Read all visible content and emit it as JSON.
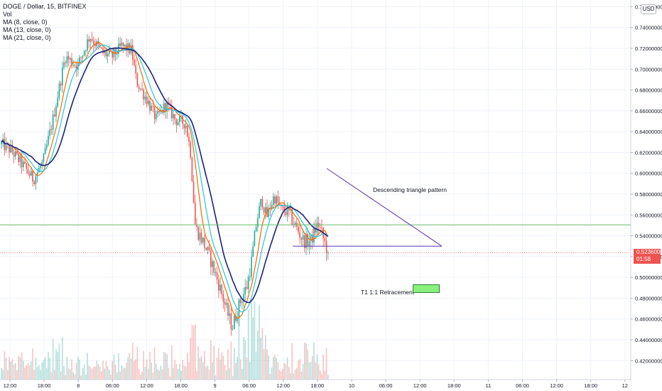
{
  "legend": {
    "symbol": "DOGE / Dollar, 15, BITFINEX",
    "vol": "Vol",
    "ma8": "MA (8, close, 0)",
    "ma13": "MA (13, close, 0)",
    "ma21": "MA (21, close, 0)"
  },
  "currency_button": "USD",
  "price_tag": {
    "price": "0.52360000",
    "countdown": "01:58"
  },
  "annotations": {
    "pattern": "Descending triangle pattern",
    "target": "T1  1:1 Retracement"
  },
  "colors": {
    "up": "#26a69a",
    "down": "#ef5350",
    "ma8": "#ef6c00",
    "ma13": "#26c6da",
    "ma21": "#1a237e",
    "support_line": "#66bb6a",
    "triangle": "#5e35b1",
    "target_box": "#89f07c",
    "price_line": "#ef5350"
  },
  "chart_data": {
    "type": "candlestick",
    "symbol": "DOGE / Dollar",
    "interval": "15",
    "exchange": "BITFINEX",
    "ylim": [
      0.412,
      0.761
    ],
    "ytick_labels": [
      "0.42000000",
      "0.44000000",
      "0.46000000",
      "0.48000000",
      "0.50000000",
      "0.52000000",
      "0.54000000",
      "0.56000000",
      "0.58000000",
      "0.60000000",
      "0.62000000",
      "0.64000000",
      "0.66000000",
      "0.68000000",
      "0.70000000",
      "0.72000000",
      "0.74000000",
      "0.76000000"
    ],
    "ytick_values": [
      0.42,
      0.44,
      0.46,
      0.48,
      0.5,
      0.52,
      0.54,
      0.56,
      0.58,
      0.6,
      0.62,
      0.64,
      0.66,
      0.68,
      0.7,
      0.72,
      0.74,
      0.76
    ],
    "xtick_labels": [
      "12:00",
      "18:00",
      "8",
      "06:00",
      "12:00",
      "18:00",
      "9",
      "06:00",
      "12:00",
      "18:00",
      "10",
      "06:00",
      "12:00",
      "18:00",
      "11",
      "06:00",
      "12:00",
      "18:00",
      "12"
    ],
    "candle_count": 210,
    "path_anchors": [
      [
        0,
        0.628
      ],
      [
        8,
        0.622
      ],
      [
        18,
        0.607
      ],
      [
        26,
        0.594
      ],
      [
        34,
        0.611
      ],
      [
        42,
        0.652
      ],
      [
        52,
        0.712
      ],
      [
        62,
        0.703
      ],
      [
        72,
        0.732
      ],
      [
        82,
        0.716
      ],
      [
        90,
        0.712
      ],
      [
        98,
        0.722
      ],
      [
        106,
        0.718
      ],
      [
        110,
        0.688
      ],
      [
        118,
        0.672
      ],
      [
        126,
        0.652
      ],
      [
        134,
        0.666
      ],
      [
        142,
        0.651
      ],
      [
        150,
        0.648
      ],
      [
        154,
        0.62
      ],
      [
        158,
        0.548
      ],
      [
        164,
        0.535
      ],
      [
        170,
        0.518
      ],
      [
        178,
        0.49
      ],
      [
        184,
        0.466
      ],
      [
        188,
        0.452
      ],
      [
        194,
        0.475
      ],
      [
        200,
        0.492
      ],
      [
        204,
        0.518
      ],
      [
        208,
        0.555
      ],
      [
        212,
        0.575
      ],
      [
        216,
        0.558
      ],
      [
        222,
        0.578
      ],
      [
        228,
        0.565
      ],
      [
        234,
        0.562
      ],
      [
        240,
        0.548
      ],
      [
        246,
        0.535
      ],
      [
        252,
        0.535
      ],
      [
        258,
        0.552
      ],
      [
        262,
        0.538
      ],
      [
        266,
        0.524
      ]
    ],
    "current_price": 0.5236,
    "support_level": 0.5505,
    "triangle": {
      "upper": [
        [
          163,
          0.604
        ],
        [
          266,
          0.53
        ]
      ],
      "lower": [
        [
          156,
          0.53
        ],
        [
          266,
          0.53
        ]
      ]
    },
    "target_box_level": 0.4895,
    "moving_averages": [
      {
        "name": "MA (8, close, 0)",
        "period": 8
      },
      {
        "name": "MA (13, close, 0)",
        "period": 13
      },
      {
        "name": "MA (21, close, 0)",
        "period": 21
      }
    ],
    "grid": true
  }
}
